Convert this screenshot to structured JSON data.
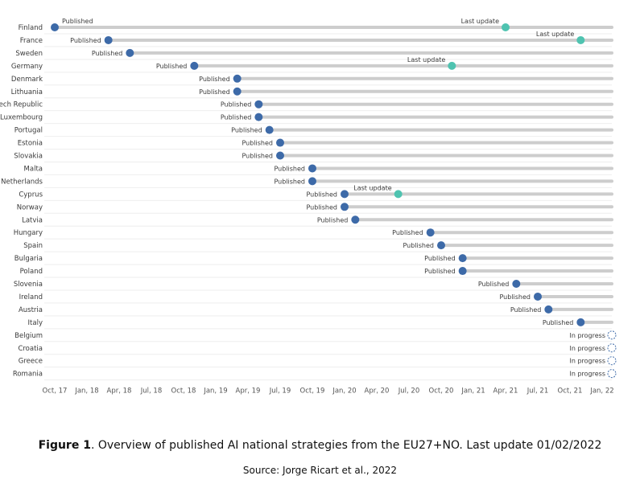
{
  "chart_data": {
    "type": "timeline",
    "x_ticks": [
      "Oct, 17",
      "Jan, 18",
      "Apr, 18",
      "Jul, 18",
      "Oct, 18",
      "Jan, 19",
      "Apr, 19",
      "Jul, 19",
      "Oct, 19",
      "Jan, 20",
      "Apr, 20",
      "Jul, 20",
      "Oct, 20",
      "Jan, 21",
      "Apr, 21",
      "Jul, 21",
      "Oct, 21",
      "Jan, 22"
    ],
    "x_range": [
      "2017-10",
      "2022-01"
    ],
    "published_label": "Published",
    "update_label": "Last update",
    "progress_label": "In progress",
    "colors": {
      "published": "#3d6aa8",
      "update": "#4fc3b0",
      "bar": "#cdcdcd",
      "progress": "#3d6aa8"
    },
    "rows": [
      {
        "country": "Finland",
        "published": "2017-10",
        "update": "2021-04"
      },
      {
        "country": "France",
        "published": "2018-03",
        "update": "2021-11"
      },
      {
        "country": "Sweden",
        "published": "2018-05"
      },
      {
        "country": "Germany",
        "published": "2018-11",
        "update": "2020-11"
      },
      {
        "country": "Denmark",
        "published": "2019-03"
      },
      {
        "country": "Lithuania",
        "published": "2019-03"
      },
      {
        "country": "Czech Republic",
        "published": "2019-05"
      },
      {
        "country": "Luxembourg",
        "published": "2019-05"
      },
      {
        "country": "Portugal",
        "published": "2019-06"
      },
      {
        "country": "Estonia",
        "published": "2019-07"
      },
      {
        "country": "Slovakia",
        "published": "2019-07"
      },
      {
        "country": "Malta",
        "published": "2019-10"
      },
      {
        "country": "Netherlands",
        "published": "2019-10"
      },
      {
        "country": "Cyprus",
        "published": "2020-01",
        "update": "2020-06"
      },
      {
        "country": "Norway",
        "published": "2020-01"
      },
      {
        "country": "Latvia",
        "published": "2020-02"
      },
      {
        "country": "Hungary",
        "published": "2020-09"
      },
      {
        "country": "Spain",
        "published": "2020-10"
      },
      {
        "country": "Bulgaria",
        "published": "2020-12"
      },
      {
        "country": "Poland",
        "published": "2020-12"
      },
      {
        "country": "Slovenia",
        "published": "2021-05"
      },
      {
        "country": "Ireland",
        "published": "2021-07"
      },
      {
        "country": "Austria",
        "published": "2021-08"
      },
      {
        "country": "Italy",
        "published": "2021-11"
      },
      {
        "country": "Belgium",
        "status": "In progress"
      },
      {
        "country": "Croatia",
        "status": "In progress"
      },
      {
        "country": "Greece",
        "status": "In progress"
      },
      {
        "country": "Romania",
        "status": "In progress"
      }
    ]
  },
  "caption": {
    "figure_label": "Figure 1",
    "text": ". Overview of published AI national strategies from the EU27+NO. Last update 01/02/2022",
    "source": "Source: Jorge Ricart et al., 2022"
  }
}
